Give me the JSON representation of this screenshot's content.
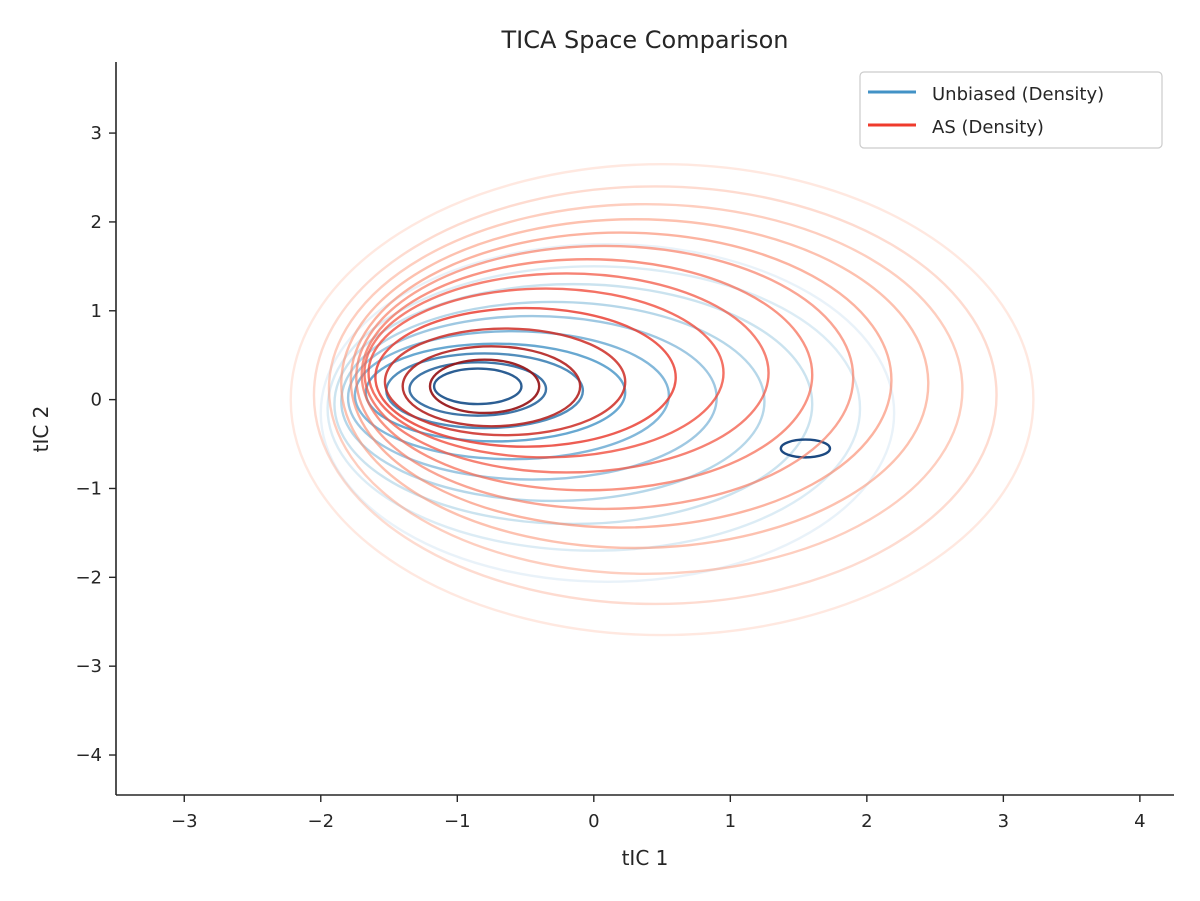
{
  "chart_data": {
    "type": "contour",
    "title": "TICA Space Comparison",
    "xlabel": "tIC 1",
    "ylabel": "tIC 2",
    "xlim": [
      -3.5,
      4.25
    ],
    "ylim": [
      -4.45,
      3.8
    ],
    "xticks": [
      -3,
      -2,
      -1,
      0,
      1,
      2,
      3,
      4
    ],
    "xtick_labels": [
      "−3",
      "−2",
      "−1",
      "0",
      "1",
      "2",
      "3",
      "4"
    ],
    "yticks": [
      -4,
      -3,
      -2,
      -1,
      0,
      1,
      2,
      3
    ],
    "ytick_labels": [
      "−4",
      "−3",
      "−2",
      "−1",
      "0",
      "1",
      "2",
      "3"
    ],
    "grid": false,
    "legend_position": "upper right",
    "series": [
      {
        "name": "Unbiased (Density)",
        "color": "#4292c6",
        "colormap": "Blues",
        "ramp": [
          "#deebf7",
          "#9ecae1",
          "#4292c6",
          "#08306b"
        ],
        "levels": [
          {
            "center": [
              -0.85,
              0.15
            ],
            "rx": 0.32,
            "ry": 0.2
          },
          {
            "center": [
              -0.85,
              0.12
            ],
            "rx": 0.5,
            "ry": 0.3
          },
          {
            "center": [
              -0.8,
              0.1
            ],
            "rx": 0.72,
            "ry": 0.42
          },
          {
            "center": [
              -0.72,
              0.08
            ],
            "rx": 0.95,
            "ry": 0.55
          },
          {
            "center": [
              -0.6,
              0.05
            ],
            "rx": 1.15,
            "ry": 0.72
          },
          {
            "center": [
              -0.45,
              0.02
            ],
            "rx": 1.35,
            "ry": 0.92
          },
          {
            "center": [
              -0.3,
              -0.02
            ],
            "rx": 1.55,
            "ry": 1.12
          },
          {
            "center": [
              -0.15,
              -0.05
            ],
            "rx": 1.75,
            "ry": 1.35
          },
          {
            "center": [
              0.0,
              -0.1
            ],
            "rx": 1.95,
            "ry": 1.6
          },
          {
            "center": [
              0.1,
              -0.15
            ],
            "rx": 2.1,
            "ry": 1.9
          },
          {
            "center": [
              1.55,
              -0.55
            ],
            "rx": 0.18,
            "ry": 0.1
          }
        ]
      },
      {
        "name": "AS (Density)",
        "color": "#ef3b2c",
        "colormap": "Reds",
        "ramp": [
          "#fee0d2",
          "#fc9272",
          "#ef3b2c",
          "#67000d"
        ],
        "levels": [
          {
            "center": [
              -0.8,
              0.15
            ],
            "rx": 0.4,
            "ry": 0.3
          },
          {
            "center": [
              -0.75,
              0.15
            ],
            "rx": 0.65,
            "ry": 0.45
          },
          {
            "center": [
              -0.65,
              0.2
            ],
            "rx": 0.88,
            "ry": 0.6
          },
          {
            "center": [
              -0.5,
              0.25
            ],
            "rx": 1.1,
            "ry": 0.78
          },
          {
            "center": [
              -0.35,
              0.3
            ],
            "rx": 1.3,
            "ry": 0.95
          },
          {
            "center": [
              -0.2,
              0.3
            ],
            "rx": 1.48,
            "ry": 1.12
          },
          {
            "center": [
              -0.05,
              0.28
            ],
            "rx": 1.65,
            "ry": 1.3
          },
          {
            "center": [
              0.08,
              0.25
            ],
            "rx": 1.82,
            "ry": 1.48
          },
          {
            "center": [
              0.2,
              0.22
            ],
            "rx": 1.98,
            "ry": 1.66
          },
          {
            "center": [
              0.3,
              0.18
            ],
            "rx": 2.15,
            "ry": 1.85
          },
          {
            "center": [
              0.38,
              0.12
            ],
            "rx": 2.32,
            "ry": 2.08
          },
          {
            "center": [
              0.45,
              0.05
            ],
            "rx": 2.5,
            "ry": 2.35
          },
          {
            "center": [
              0.5,
              0.0
            ],
            "rx": 2.72,
            "ry": 2.65
          }
        ]
      }
    ]
  }
}
